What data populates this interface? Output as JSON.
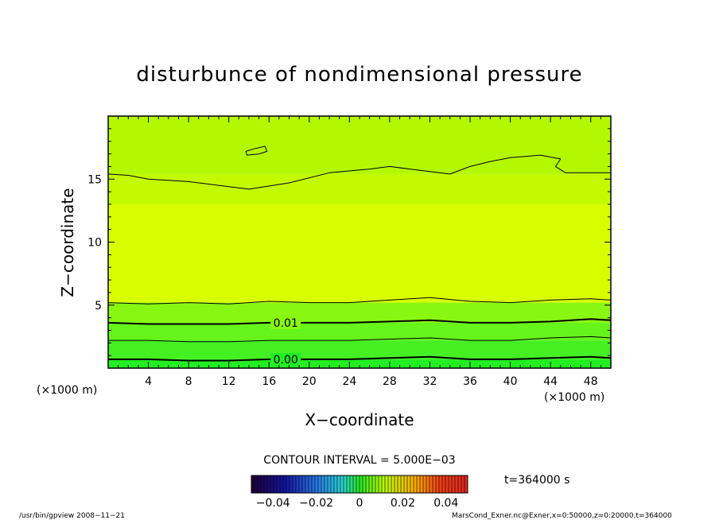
{
  "chart_data": {
    "type": "heatmap",
    "title": "disturbunce of nondimensional pressure",
    "xlabel": "X−coordinate",
    "ylabel": "Z−coordinate",
    "xunit": "(×1000 m)",
    "yunit": "(×1000 m)",
    "xlim": [
      0,
      50
    ],
    "ylim": [
      0,
      20
    ],
    "xticks": [
      4,
      8,
      12,
      16,
      20,
      24,
      28,
      32,
      36,
      40,
      44,
      48
    ],
    "yticks": [
      5,
      10,
      15
    ],
    "contour_interval_label": "CONTOUR INTERVAL = 5.000E−03",
    "contour_labels": [
      {
        "text": "0.01",
        "x": 16,
        "z": 3.6
      },
      {
        "text": "0.00",
        "x": 16,
        "z": 0.7
      }
    ],
    "contours": [
      {
        "level": 0.015,
        "bold": false,
        "points": [
          [
            0,
            15.4
          ],
          [
            2,
            15.3
          ],
          [
            4,
            15.0
          ],
          [
            8,
            14.8
          ],
          [
            12,
            14.4
          ],
          [
            14,
            14.2
          ],
          [
            18,
            14.7
          ],
          [
            22,
            15.5
          ],
          [
            26,
            15.8
          ],
          [
            28,
            16.0
          ],
          [
            30,
            15.8
          ],
          [
            32,
            15.6
          ],
          [
            34,
            15.4
          ],
          [
            36,
            16.0
          ],
          [
            38,
            16.4
          ],
          [
            40,
            16.7
          ],
          [
            43,
            16.9
          ],
          [
            45,
            16.6
          ],
          [
            44.5,
            16.0
          ],
          [
            45.5,
            15.5
          ],
          [
            48,
            15.5
          ],
          [
            50,
            15.5
          ]
        ]
      },
      {
        "level": 0.015,
        "bold": false,
        "closed": true,
        "points": [
          [
            13.7,
            17.2
          ],
          [
            14.5,
            17.4
          ],
          [
            15.6,
            17.6
          ],
          [
            15.8,
            17.2
          ],
          [
            15,
            17.0
          ],
          [
            13.8,
            16.9
          ]
        ]
      },
      {
        "level": 0.01,
        "bold": false,
        "points": [
          [
            0,
            5.2
          ],
          [
            4,
            5.1
          ],
          [
            8,
            5.2
          ],
          [
            12,
            5.1
          ],
          [
            16,
            5.3
          ],
          [
            20,
            5.2
          ],
          [
            24,
            5.2
          ],
          [
            28,
            5.4
          ],
          [
            32,
            5.6
          ],
          [
            36,
            5.3
          ],
          [
            40,
            5.2
          ],
          [
            44,
            5.4
          ],
          [
            48,
            5.5
          ],
          [
            50,
            5.4
          ]
        ]
      },
      {
        "level": 0.01,
        "bold": true,
        "points": [
          [
            0,
            3.6
          ],
          [
            4,
            3.5
          ],
          [
            8,
            3.5
          ],
          [
            12,
            3.5
          ],
          [
            16,
            3.6
          ],
          [
            20,
            3.6
          ],
          [
            24,
            3.6
          ],
          [
            28,
            3.7
          ],
          [
            32,
            3.8
          ],
          [
            36,
            3.6
          ],
          [
            40,
            3.6
          ],
          [
            44,
            3.7
          ],
          [
            48,
            3.9
          ],
          [
            50,
            3.8
          ]
        ]
      },
      {
        "level": 0.005,
        "bold": false,
        "points": [
          [
            0,
            2.2
          ],
          [
            4,
            2.2
          ],
          [
            8,
            2.1
          ],
          [
            12,
            2.1
          ],
          [
            16,
            2.2
          ],
          [
            20,
            2.2
          ],
          [
            24,
            2.2
          ],
          [
            28,
            2.3
          ],
          [
            32,
            2.4
          ],
          [
            36,
            2.2
          ],
          [
            40,
            2.2
          ],
          [
            44,
            2.4
          ],
          [
            48,
            2.5
          ],
          [
            50,
            2.4
          ]
        ]
      },
      {
        "level": 0.0,
        "bold": true,
        "points": [
          [
            0,
            0.7
          ],
          [
            4,
            0.7
          ],
          [
            8,
            0.6
          ],
          [
            12,
            0.6
          ],
          [
            16,
            0.7
          ],
          [
            20,
            0.7
          ],
          [
            24,
            0.7
          ],
          [
            28,
            0.8
          ],
          [
            32,
            0.9
          ],
          [
            36,
            0.7
          ],
          [
            40,
            0.7
          ],
          [
            44,
            0.8
          ],
          [
            48,
            0.9
          ],
          [
            50,
            0.8
          ]
        ]
      }
    ],
    "fill_bands": [
      {
        "z0": 0,
        "z1": 0.7,
        "color": "#22ee22"
      },
      {
        "z0": 0.7,
        "z1": 2.2,
        "color": "#44f022"
      },
      {
        "z0": 2.2,
        "z1": 3.6,
        "color": "#66f41a"
      },
      {
        "z0": 3.6,
        "z1": 5.2,
        "color": "#88f812"
      },
      {
        "z0": 5.2,
        "z1": 13.0,
        "color": "#d8ff00"
      },
      {
        "z0": 13.0,
        "z1": 15.4,
        "color": "#c4fa00"
      },
      {
        "z0": 15.4,
        "z1": 20,
        "color": "#b4f800"
      }
    ],
    "colorbar": {
      "ticks": [
        "−0.04",
        "−0.02",
        "0",
        "0.02",
        "0.04"
      ],
      "range": [
        -0.05,
        0.05
      ],
      "tick_values": [
        -0.04,
        -0.02,
        0,
        0.02,
        0.04
      ]
    }
  },
  "time_label": "t=364000 s",
  "footer_left": "/usr/bin/gpview  2008−11−21",
  "footer_right": "MarsCond_Exner.nc@Exner,x=0:50000,z=0:20000,t=364000"
}
